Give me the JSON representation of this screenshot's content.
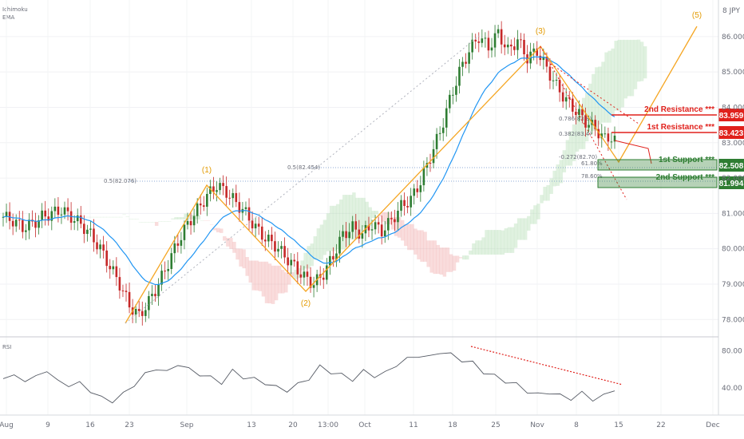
{
  "header": {
    "indicator_1": "Ichimoku",
    "indicator_2": "EMA",
    "symbol": "8 JPY"
  },
  "colors": {
    "bull": "#26a69a",
    "bear": "#ef5350",
    "candle_up": "#2e7d32",
    "candle_down": "#c62828",
    "ema": "#2196f3",
    "wave": "#f5a623",
    "resistance": "#e0201b",
    "support": "#2e7d32",
    "cloud_green": "#a5d6a7",
    "cloud_red": "#ef9a9a"
  },
  "chart_data": {
    "type": "candlestick",
    "instrument": "JPY",
    "price_axis": {
      "ticks": [
        "86.000",
        "85.000",
        "84.000",
        "83.000",
        "82.000",
        "81.000",
        "80.000",
        "79.000",
        "78.000"
      ],
      "ylim": [
        77.6,
        86.9
      ]
    },
    "time_axis": {
      "ticks": [
        "Aug",
        "9",
        "16",
        "23",
        "Sep",
        "13",
        "20",
        "13:00",
        "Oct",
        "11",
        "18",
        "25",
        "Nov",
        "8",
        "15",
        "22",
        "Dec"
      ]
    },
    "levels": [
      {
        "name": "2nd Resistance ***",
        "value": "83.959",
        "type": "resistance"
      },
      {
        "name": "1st Resistance ***",
        "value": "83.423",
        "type": "resistance"
      },
      {
        "name": "1st Support ***",
        "value": "82.508",
        "type": "support"
      },
      {
        "name": "2nd Support ***",
        "value": "81.994",
        "type": "support"
      }
    ],
    "fib_labels": [
      "0.5(82.076)",
      "0.5(82.454)",
      "0.786(83.8)",
      "0.382(83.4)",
      "-0.272(82.70)",
      "61.80%",
      "78.60%"
    ],
    "wave_labels": [
      "(1)",
      "(2)",
      "(3)",
      "(5)"
    ],
    "wave_points": [
      {
        "date": "Aug 20",
        "price": 77.9
      },
      {
        "date": "Sep 1",
        "price": 81.9
      },
      {
        "date": "Sep 22",
        "price": 78.9
      },
      {
        "date": "Oct 29",
        "price": 86.1
      },
      {
        "date": "Nov 12",
        "price": 82.4
      },
      {
        "date": "Dec 1",
        "price": 86.6
      }
    ],
    "close_series": [
      80.9,
      80.8,
      80.6,
      80.7,
      80.9,
      81.0,
      81.1,
      80.9,
      80.7,
      80.4,
      80.0,
      79.5,
      79.0,
      78.4,
      78.1,
      78.5,
      79.0,
      79.6,
      80.2,
      80.7,
      81.1,
      81.5,
      81.8,
      81.6,
      81.3,
      81.0,
      80.6,
      80.3,
      80.1,
      79.8,
      79.5,
      79.2,
      79.0,
      79.3,
      79.8,
      80.4,
      80.6,
      80.4,
      80.7,
      80.5,
      80.8,
      81.2,
      81.4,
      81.9,
      82.6,
      83.3,
      84.2,
      85.0,
      85.6,
      86.0,
      85.7,
      86.1,
      85.6,
      85.9,
      85.4,
      85.6,
      85.1,
      84.6,
      84.2,
      83.9,
      83.6,
      83.4,
      83.1,
      83.2
    ],
    "rsi": {
      "label": "RSI",
      "ticks": [
        "80.00",
        "40.00"
      ],
      "ylim": [
        15,
        90
      ],
      "values": [
        50,
        54,
        47,
        53,
        58,
        48,
        42,
        46,
        36,
        30,
        25,
        34,
        43,
        55,
        61,
        57,
        66,
        60,
        55,
        51,
        46,
        58,
        52,
        49,
        46,
        40,
        38,
        43,
        51,
        62,
        58,
        53,
        50,
        57,
        54,
        55,
        66,
        70,
        76,
        72,
        80,
        75,
        71,
        66,
        58,
        52,
        48,
        43,
        37,
        32,
        36,
        31,
        29,
        34,
        28,
        31,
        39
      ]
    }
  }
}
